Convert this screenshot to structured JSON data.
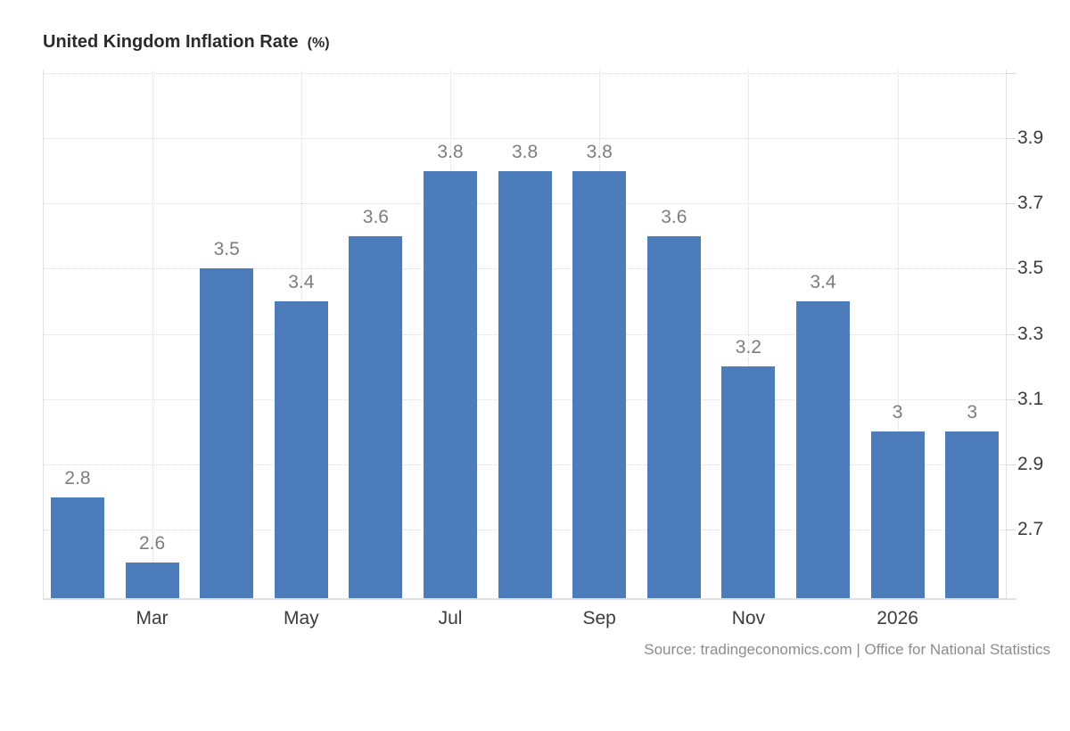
{
  "title": {
    "main": "United Kingdom Inflation Rate",
    "unit": "(%)"
  },
  "source_text": "Source: tradingeconomics.com | Office for National Statistics",
  "colors": {
    "bar": "#4d7cba",
    "grid": "#dcdcdc",
    "axis": "#e1e1e1",
    "value_label": "#7d7d7d",
    "axis_label": "#3c3c3c",
    "title": "#2b2b2b",
    "source": "#8c8c8c"
  },
  "chart_data": {
    "type": "bar",
    "title": "United Kingdom Inflation Rate (%)",
    "values": [
      2.8,
      2.6,
      3.5,
      3.4,
      3.6,
      3.8,
      3.8,
      3.8,
      3.6,
      3.2,
      3.4,
      3,
      3
    ],
    "bar_labels": [
      "2.8",
      "2.6",
      "3.5",
      "3.4",
      "3.6",
      "3.8",
      "3.8",
      "3.8",
      "3.6",
      "3.2",
      "3.4",
      "3",
      "3"
    ],
    "x_tick_labels": [
      "Mar",
      "May",
      "Jul",
      "Sep",
      "Nov",
      "2026"
    ],
    "x_tick_bar_indices": [
      1,
      3,
      5,
      7,
      9,
      11
    ],
    "y_tick_labels": [
      "2.7",
      "2.9",
      "3.1",
      "3.3",
      "3.5",
      "3.7",
      "3.9"
    ],
    "y_ticks": [
      2.7,
      2.9,
      3.1,
      3.3,
      3.5,
      3.7,
      3.9
    ],
    "gridline_values": [
      2.7,
      2.9,
      3.1,
      3.3,
      3.5,
      3.7,
      3.9,
      4.1
    ],
    "ylim": [
      2.49,
      4.11
    ],
    "grid": "dotted",
    "legend": null,
    "y_axis_side": "right"
  }
}
